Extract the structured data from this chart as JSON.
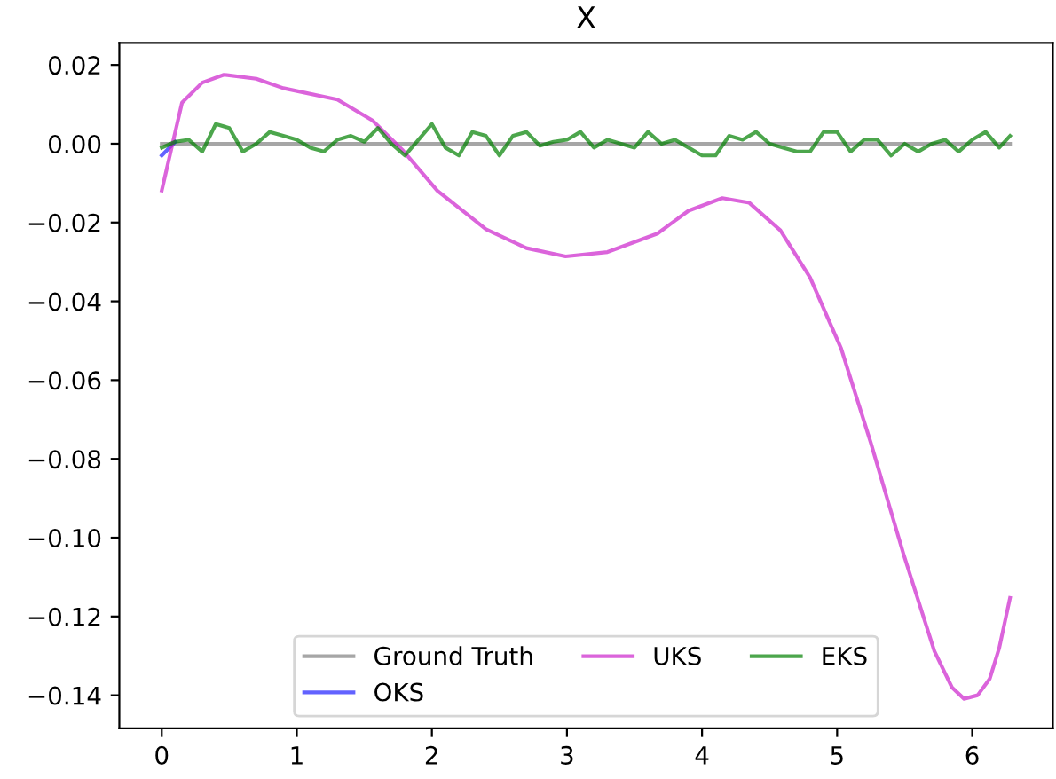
{
  "chart_data": {
    "type": "line",
    "title": "X",
    "xlim": [
      -0.314,
      6.597
    ],
    "ylim": [
      -0.1484,
      0.0256
    ],
    "xticks": [
      0,
      1,
      2,
      3,
      4,
      5,
      6
    ],
    "yticks": [
      {
        "value": 0.02,
        "label": "0.02"
      },
      {
        "value": 0.0,
        "label": "0.00"
      },
      {
        "value": -0.02,
        "label": "−0.02"
      },
      {
        "value": -0.04,
        "label": "−0.04"
      },
      {
        "value": -0.06,
        "label": "−0.06"
      },
      {
        "value": -0.08,
        "label": "−0.08"
      },
      {
        "value": -0.1,
        "label": "−0.10"
      },
      {
        "value": -0.12,
        "label": "−0.12"
      },
      {
        "value": -0.14,
        "label": "−0.14"
      }
    ],
    "grid": false,
    "legend": "bottom",
    "marker": "none",
    "line_style": "solid",
    "series": [
      {
        "name": "Ground Truth",
        "color": "#808080",
        "x": [
          0,
          6.28
        ],
        "values": [
          0.0,
          0.0
        ]
      },
      {
        "name": "OKS",
        "color": "#2020ff",
        "x": [
          0,
          0.1
        ],
        "values": [
          -0.003,
          0.0005
        ]
      },
      {
        "name": "UKS",
        "color": "#cc22cc",
        "x": [
          0,
          0.15,
          0.3,
          0.46,
          0.7,
          0.9,
          1.3,
          1.56,
          1.78,
          2.04,
          2.4,
          2.7,
          2.99,
          3.3,
          3.67,
          3.9,
          4.15,
          4.35,
          4.58,
          4.8,
          5.03,
          5.25,
          5.49,
          5.72,
          5.85,
          5.94,
          6.04,
          6.13,
          6.2,
          6.28
        ],
        "values": [
          -0.0119,
          0.0104,
          0.0155,
          0.0175,
          0.0165,
          0.0141,
          0.0112,
          0.0059,
          -0.0015,
          -0.0119,
          -0.0217,
          -0.0265,
          -0.0286,
          -0.0275,
          -0.0228,
          -0.017,
          -0.0138,
          -0.015,
          -0.022,
          -0.034,
          -0.052,
          -0.076,
          -0.104,
          -0.1288,
          -0.138,
          -0.1409,
          -0.14,
          -0.1358,
          -0.128,
          -0.1153
        ]
      },
      {
        "name": "EKS",
        "color": "#008000",
        "x": [
          0,
          0.1,
          0.2,
          0.3,
          0.4,
          0.5,
          0.6,
          0.7,
          0.8,
          0.9,
          1.0,
          1.1,
          1.2,
          1.3,
          1.4,
          1.5,
          1.6,
          1.7,
          1.8,
          1.9,
          2.0,
          2.1,
          2.2,
          2.3,
          2.4,
          2.5,
          2.6,
          2.7,
          2.8,
          2.9,
          3.0,
          3.1,
          3.2,
          3.3,
          3.4,
          3.5,
          3.6,
          3.7,
          3.8,
          3.9,
          4.0,
          4.1,
          4.2,
          4.3,
          4.4,
          4.5,
          4.6,
          4.7,
          4.8,
          4.9,
          5.0,
          5.1,
          5.2,
          5.3,
          5.4,
          5.5,
          5.6,
          5.7,
          5.8,
          5.9,
          6.0,
          6.1,
          6.2,
          6.28
        ],
        "values": [
          -0.001,
          0.0005,
          0.001,
          -0.002,
          0.005,
          0.004,
          -0.002,
          0.0,
          0.003,
          0.002,
          0.001,
          -0.001,
          -0.002,
          0.001,
          0.002,
          0.0005,
          0.004,
          0.0,
          -0.003,
          0.001,
          0.005,
          -0.001,
          -0.003,
          0.003,
          0.002,
          -0.003,
          0.002,
          0.003,
          -0.0005,
          0.0005,
          0.001,
          0.003,
          -0.001,
          0.001,
          0.0,
          -0.001,
          0.003,
          0.0,
          0.001,
          -0.001,
          -0.003,
          -0.003,
          0.002,
          0.001,
          0.003,
          0.0,
          -0.001,
          -0.002,
          -0.002,
          0.003,
          0.003,
          -0.002,
          0.001,
          0.001,
          -0.003,
          0.0,
          -0.002,
          0.0,
          0.001,
          -0.002,
          0.001,
          0.003,
          -0.001,
          0.002
        ]
      }
    ]
  }
}
